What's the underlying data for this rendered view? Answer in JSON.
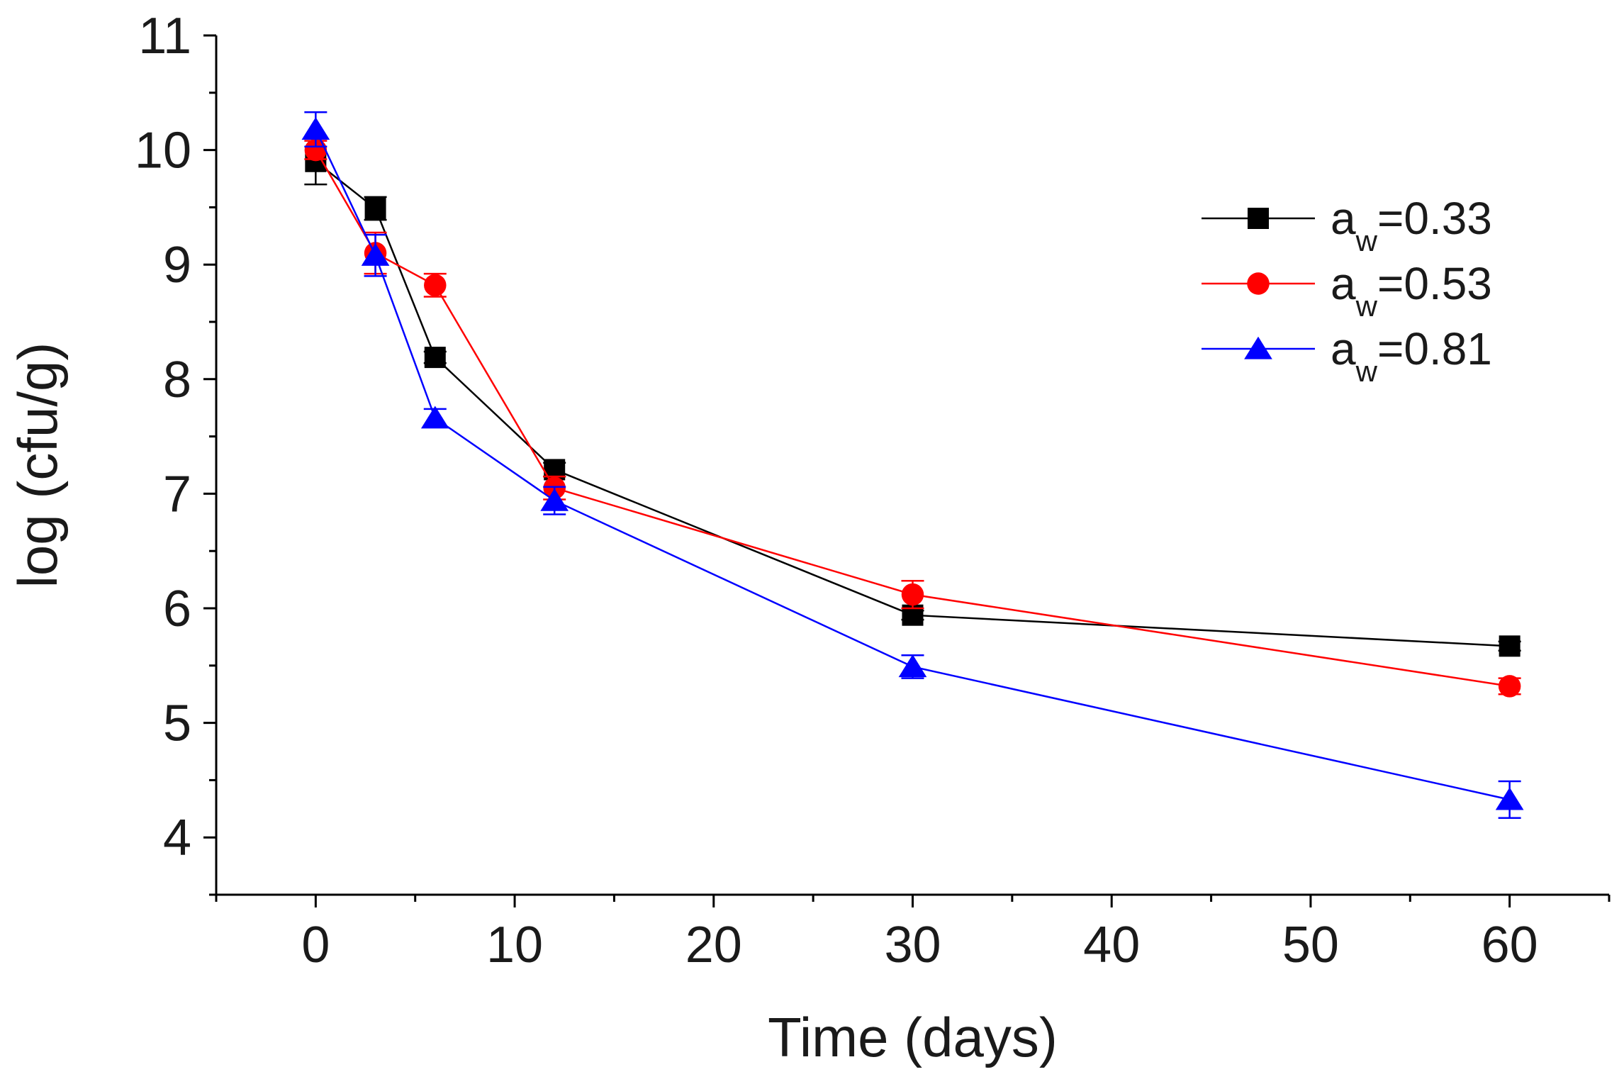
{
  "chart_data": {
    "type": "line",
    "title": "",
    "xlabel": "Time (days)",
    "ylabel": "log (cfu/g)",
    "xlim": [
      -5,
      65
    ],
    "ylim": [
      3.5,
      11
    ],
    "x_ticks": [
      0,
      10,
      20,
      30,
      40,
      50,
      60
    ],
    "x_tick_labels": [
      "0",
      "10",
      "20",
      "30",
      "40",
      "50",
      "60"
    ],
    "y_ticks": [
      4,
      5,
      6,
      7,
      8,
      9,
      10,
      11
    ],
    "y_tick_labels": [
      "4",
      "5",
      "6",
      "7",
      "8",
      "9",
      "10",
      "11"
    ],
    "grid": false,
    "legend_position": "top-right",
    "x": [
      0,
      3,
      6,
      12,
      30,
      60
    ],
    "series": [
      {
        "name": "aw=0.33",
        "label_main": "a",
        "label_sub": "w",
        "label_rest": "=0.33",
        "color": "#000000",
        "marker": "square",
        "values": [
          9.9,
          9.49,
          8.19,
          7.21,
          5.94,
          5.67
        ],
        "errors": [
          0.2,
          0.1,
          0.05,
          0.06,
          0.04,
          0.04
        ]
      },
      {
        "name": "aw=0.53",
        "label_main": "a",
        "label_sub": "w",
        "label_rest": "=0.53",
        "color": "#ff0000",
        "marker": "circle",
        "values": [
          10.0,
          9.1,
          8.82,
          7.05,
          6.12,
          5.32
        ],
        "errors": [
          0.08,
          0.18,
          0.1,
          0.1,
          0.12,
          0.07
        ]
      },
      {
        "name": "aw=0.81",
        "label_main": "a",
        "label_sub": "w",
        "label_rest": "=0.81",
        "color": "#0000ff",
        "marker": "triangle",
        "values": [
          10.18,
          9.08,
          7.66,
          6.94,
          5.49,
          4.33
        ],
        "errors": [
          0.15,
          0.18,
          0.08,
          0.12,
          0.1,
          0.16
        ]
      }
    ]
  }
}
